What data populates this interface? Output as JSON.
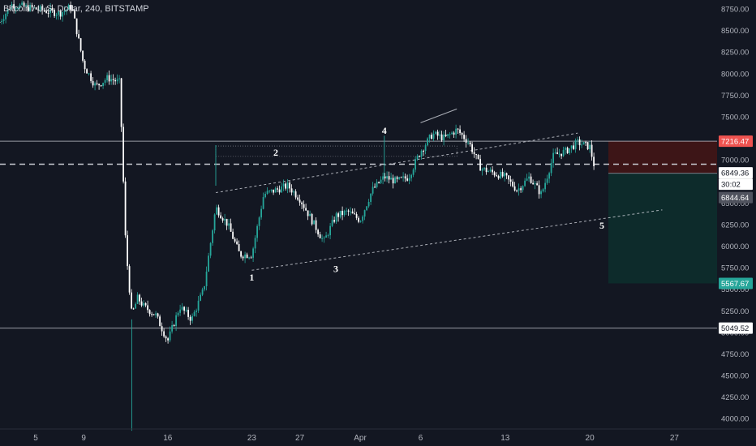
{
  "header": {
    "symbol": "Bitcoin / U.S. Dollar",
    "interval": "240",
    "exchange": "BITSTAMP"
  },
  "colors": {
    "background": "#131722",
    "up": "#26a69a",
    "down": "#ffffff",
    "grid_line": "#d1d4dc",
    "axis_text": "#b2b5be",
    "stop_zone": "#3d1517",
    "target_zone": "#0d2b2b",
    "stop_label": "#ef5350",
    "target_label": "#26a69a",
    "current_label": "#50535e"
  },
  "chart_data": {
    "type": "candlestick",
    "title": "Bitcoin / U.S. Dollar, 240, BITSTAMP",
    "ylim": [
      3900,
      8900
    ],
    "y_ticks": [
      4000,
      4250,
      4500,
      4750,
      5000,
      5250,
      5500,
      5750,
      6000,
      6250,
      6500,
      6750,
      7000,
      7250,
      7500,
      7750,
      8000,
      8250,
      8500,
      8750
    ],
    "y_tick_labels": [
      "4000.00",
      "4250.00",
      "4500.00",
      "4750.00",
      "5000.00",
      "5250.00",
      "5500.00",
      "5750.00",
      "6000.00",
      "6250.00",
      "6500.00",
      "6750.00",
      "7000.00",
      "7250.00",
      "7500.00",
      "7750.00",
      "8000.00",
      "8250.00",
      "8500.00",
      "8750.00"
    ],
    "x_ticks": [
      {
        "date": "Mar 5",
        "label": "5"
      },
      {
        "date": "Mar 9",
        "label": "9"
      },
      {
        "date": "Mar 16",
        "label": "16"
      },
      {
        "date": "Mar 23",
        "label": "23"
      },
      {
        "date": "Mar 27",
        "label": "27"
      },
      {
        "date": "Apr 1",
        "label": "Apr"
      },
      {
        "date": "Apr 6",
        "label": "6"
      },
      {
        "date": "Apr 13",
        "label": "13"
      },
      {
        "date": "Apr 20",
        "label": "20"
      },
      {
        "date": "Apr 27",
        "label": "27"
      }
    ],
    "price_path": [
      {
        "date": "Mar 2",
        "price": 8600
      },
      {
        "date": "Mar 3",
        "price": 8800
      },
      {
        "date": "Mar 5",
        "price": 8750
      },
      {
        "date": "Mar 7",
        "price": 8700
      },
      {
        "date": "Mar 8",
        "price": 8780
      },
      {
        "date": "Mar 9",
        "price": 8100
      },
      {
        "date": "Mar 10",
        "price": 7850
      },
      {
        "date": "Mar 11",
        "price": 7950
      },
      {
        "date": "Mar 12",
        "price": 7900
      },
      {
        "date": "Mar 12.5",
        "price": 6000
      },
      {
        "date": "Mar 13",
        "price": 5200
      },
      {
        "date": "Mar 13.5",
        "price": 5400
      },
      {
        "date": "Mar 14",
        "price": 5300
      },
      {
        "date": "Mar 15",
        "price": 5200
      },
      {
        "date": "Mar 16",
        "price": 4900
      },
      {
        "date": "Mar 16.5",
        "price": 5100
      },
      {
        "date": "Mar 17",
        "price": 5300
      },
      {
        "date": "Mar 18",
        "price": 5150
      },
      {
        "date": "Mar 19",
        "price": 5500
      },
      {
        "date": "Mar 20",
        "price": 6450
      },
      {
        "date": "Mar 21",
        "price": 6250
      },
      {
        "date": "Mar 22",
        "price": 5900
      },
      {
        "date": "Mar 23",
        "price": 5900
      },
      {
        "date": "Mar 24",
        "price": 6600
      },
      {
        "date": "Mar 25",
        "price": 6650
      },
      {
        "date": "Mar 26",
        "price": 6700
      },
      {
        "date": "Mar 27",
        "price": 6550
      },
      {
        "date": "Mar 28",
        "price": 6300
      },
      {
        "date": "Mar 29",
        "price": 6050
      },
      {
        "date": "Mar 30",
        "price": 6350
      },
      {
        "date": "Mar 31",
        "price": 6400
      },
      {
        "date": "Apr 1",
        "price": 6300
      },
      {
        "date": "Apr 2",
        "price": 6650
      },
      {
        "date": "Apr 3",
        "price": 6800
      },
      {
        "date": "Apr 4",
        "price": 6750
      },
      {
        "date": "Apr 5",
        "price": 6800
      },
      {
        "date": "Apr 6",
        "price": 7100
      },
      {
        "date": "Apr 7",
        "price": 7300
      },
      {
        "date": "Apr 8",
        "price": 7250
      },
      {
        "date": "Apr 9",
        "price": 7350
      },
      {
        "date": "Apr 10",
        "price": 7200
      },
      {
        "date": "Apr 11",
        "price": 6900
      },
      {
        "date": "Apr 12",
        "price": 6850
      },
      {
        "date": "Apr 13",
        "price": 6800
      },
      {
        "date": "Apr 14",
        "price": 6650
      },
      {
        "date": "Apr 15",
        "price": 6800
      },
      {
        "date": "Apr 16",
        "price": 6600
      },
      {
        "date": "Apr 17",
        "price": 7050
      },
      {
        "date": "Apr 18",
        "price": 7100
      },
      {
        "date": "Apr 19",
        "price": 7200
      },
      {
        "date": "Apr 20",
        "price": 7150
      },
      {
        "date": "Apr 20.5",
        "price": 6849
      }
    ],
    "horizontal_levels": [
      {
        "price": 7216.47,
        "style": "solid"
      },
      {
        "price": 5049.52,
        "style": "solid"
      },
      {
        "price": 6950,
        "style": "dashed"
      }
    ],
    "wave_labels": [
      {
        "label": "1",
        "date": "Mar 23",
        "price": 5600
      },
      {
        "label": "2",
        "date": "Mar 25",
        "price": 7050
      },
      {
        "label": "3",
        "date": "Mar 30",
        "price": 5700
      },
      {
        "label": "4",
        "date": "Apr 3",
        "price": 7300
      },
      {
        "label": "5",
        "date": "Apr 21",
        "price": 6200
      }
    ],
    "price_labels": {
      "stop": "7216.47",
      "last": "6849.36",
      "countdown": "30:02",
      "current": "6844.64",
      "target": "5567.67",
      "level": "5049.52"
    },
    "stop_level": 7216.47,
    "entry_level": 6844.64,
    "target_level": 5567.67
  }
}
